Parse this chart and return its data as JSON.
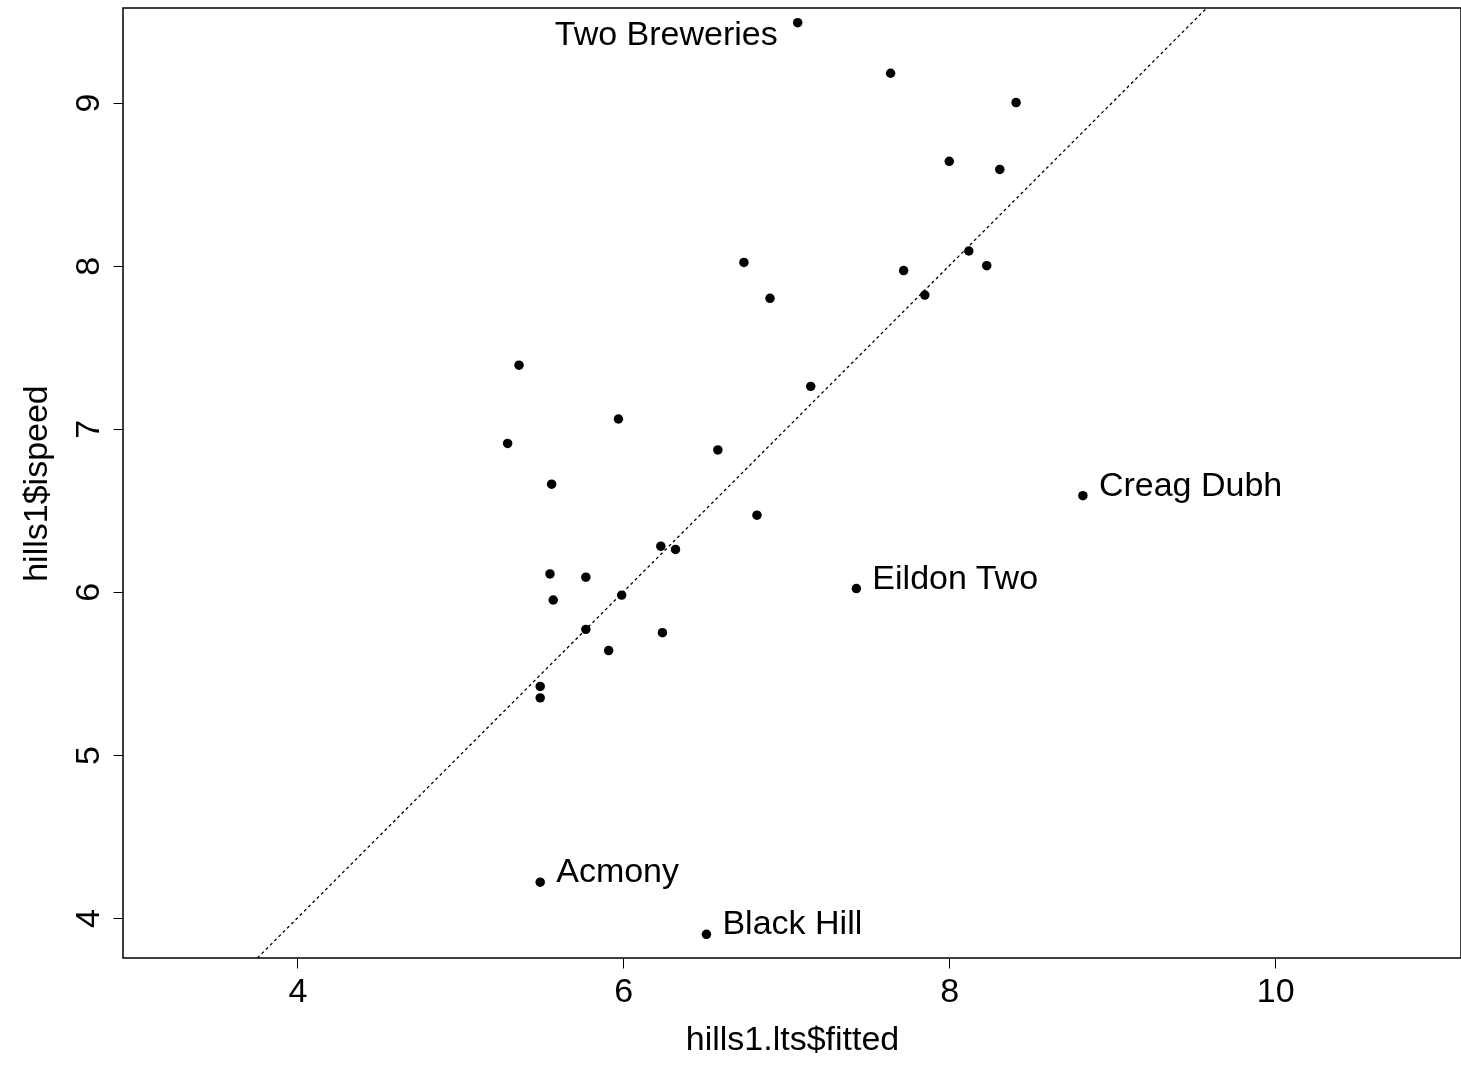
{
  "chart_data": {
    "type": "scatter",
    "xlabel": "hills1.lts$fitted",
    "ylabel": "hills1$ispeed",
    "xlim": [
      2.93,
      11.14
    ],
    "ylim": [
      3.755,
      9.58
    ],
    "xticks": [
      4,
      6,
      8,
      10
    ],
    "yticks": [
      4,
      5,
      6,
      7,
      8,
      9
    ],
    "grid": false,
    "series": [
      {
        "marker": "circle",
        "color": "#000000",
        "x": [
          7.07,
          7.64,
          8.41,
          8.0,
          8.31,
          6.74,
          8.12,
          8.23,
          7.72,
          6.9,
          7.85,
          5.36,
          7.15,
          5.97,
          5.29,
          6.58,
          5.56,
          8.82,
          6.82,
          6.23,
          6.32,
          5.55,
          5.77,
          7.43,
          5.99,
          5.57,
          5.77,
          6.24,
          5.91,
          5.49,
          5.49,
          5.49,
          6.51
        ],
        "values": [
          9.49,
          9.18,
          9.0,
          8.64,
          8.59,
          8.02,
          8.09,
          8.0,
          7.97,
          7.8,
          7.82,
          7.39,
          7.26,
          7.06,
          6.91,
          6.87,
          6.66,
          6.59,
          6.47,
          6.28,
          6.26,
          6.11,
          6.09,
          6.02,
          5.98,
          5.95,
          5.77,
          5.75,
          5.64,
          5.42,
          5.35,
          4.22,
          3.9
        ]
      },
      {
        "type": "line",
        "color": "#000000",
        "line_style": "dotted",
        "x": [
          3.755,
          9.58
        ],
        "values": [
          3.755,
          9.58
        ]
      }
    ],
    "annotations": [
      {
        "text": "Two Breweries",
        "x": 7.07,
        "y": 9.49
      },
      {
        "text": "Creag Dubh",
        "x": 8.82,
        "y": 6.59
      },
      {
        "text": "Eildon Two",
        "x": 7.43,
        "y": 6.02
      },
      {
        "text": "Acmony",
        "x": 5.49,
        "y": 4.22
      },
      {
        "text": "Black Hill",
        "x": 6.51,
        "y": 3.9
      }
    ]
  }
}
